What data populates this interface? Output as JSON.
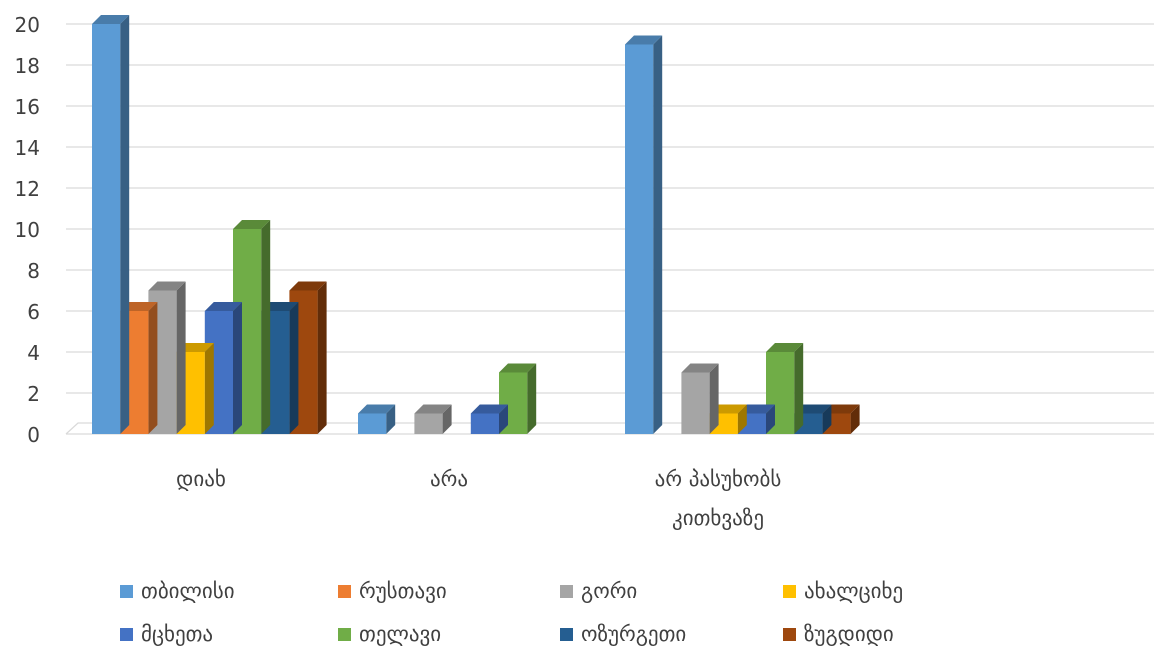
{
  "chart_data": {
    "type": "bar",
    "title": "",
    "xlabel": "",
    "ylabel": "",
    "ylim": [
      0,
      20
    ],
    "yticks": [
      0,
      2,
      4,
      6,
      8,
      10,
      12,
      14,
      16,
      18,
      20
    ],
    "grid": true,
    "legend_position": "bottom",
    "style": "3d-clustered-column",
    "categories": [
      [
        "დიახ"
      ],
      [
        "არა"
      ],
      [
        "არ პასუხობს",
        "კითხვაზე"
      ]
    ],
    "series": [
      {
        "name": "თბილისი",
        "color": "#5b9bd5",
        "values": [
          20,
          1,
          19
        ]
      },
      {
        "name": "რუსთავი",
        "color": "#ed7d31",
        "values": [
          6,
          0,
          0
        ]
      },
      {
        "name": "გორი",
        "color": "#a5a5a5",
        "values": [
          7,
          1,
          3
        ]
      },
      {
        "name": "ახალციხე",
        "color": "#ffc000",
        "values": [
          4,
          0,
          1
        ]
      },
      {
        "name": "მცხეთა",
        "color": "#4472c4",
        "values": [
          6,
          1,
          1
        ]
      },
      {
        "name": "თელავი",
        "color": "#70ad47",
        "values": [
          10,
          3,
          4
        ]
      },
      {
        "name": "ოზურგეთი",
        "color": "#255e91",
        "values": [
          6,
          0,
          1
        ]
      },
      {
        "name": "ზუგდიდი",
        "color": "#9e480e",
        "values": [
          7,
          0,
          1
        ]
      }
    ]
  }
}
